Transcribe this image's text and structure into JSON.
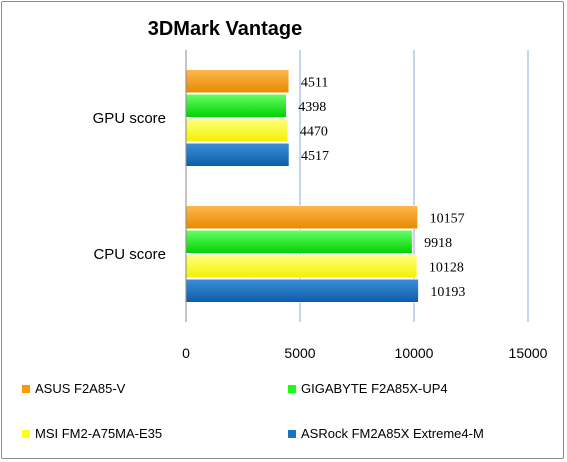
{
  "chart_data": {
    "type": "bar",
    "orientation": "horizontal",
    "title": "3DMark Vantage",
    "categories": [
      "GPU score",
      "CPU score"
    ],
    "series": [
      {
        "name": "ASUS F2A85-V",
        "values": [
          4511,
          10157
        ],
        "color": "#ff9900"
      },
      {
        "name": "GIGABYTE F2A85X-UP4",
        "values": [
          4398,
          9918
        ],
        "color": "#1aff1a"
      },
      {
        "name": "MSI FM2-A75MA-E35",
        "values": [
          4470,
          10128
        ],
        "color": "#ffff1a"
      },
      {
        "name": "ASRock FM2A85X Extreme4-M",
        "values": [
          4517,
          10193
        ],
        "color": "#1a74c4"
      }
    ],
    "xlim": [
      0,
      15000
    ],
    "xticks": [
      "0",
      "5000",
      "10000",
      "15000"
    ],
    "grid": true,
    "legend": "bottom"
  }
}
